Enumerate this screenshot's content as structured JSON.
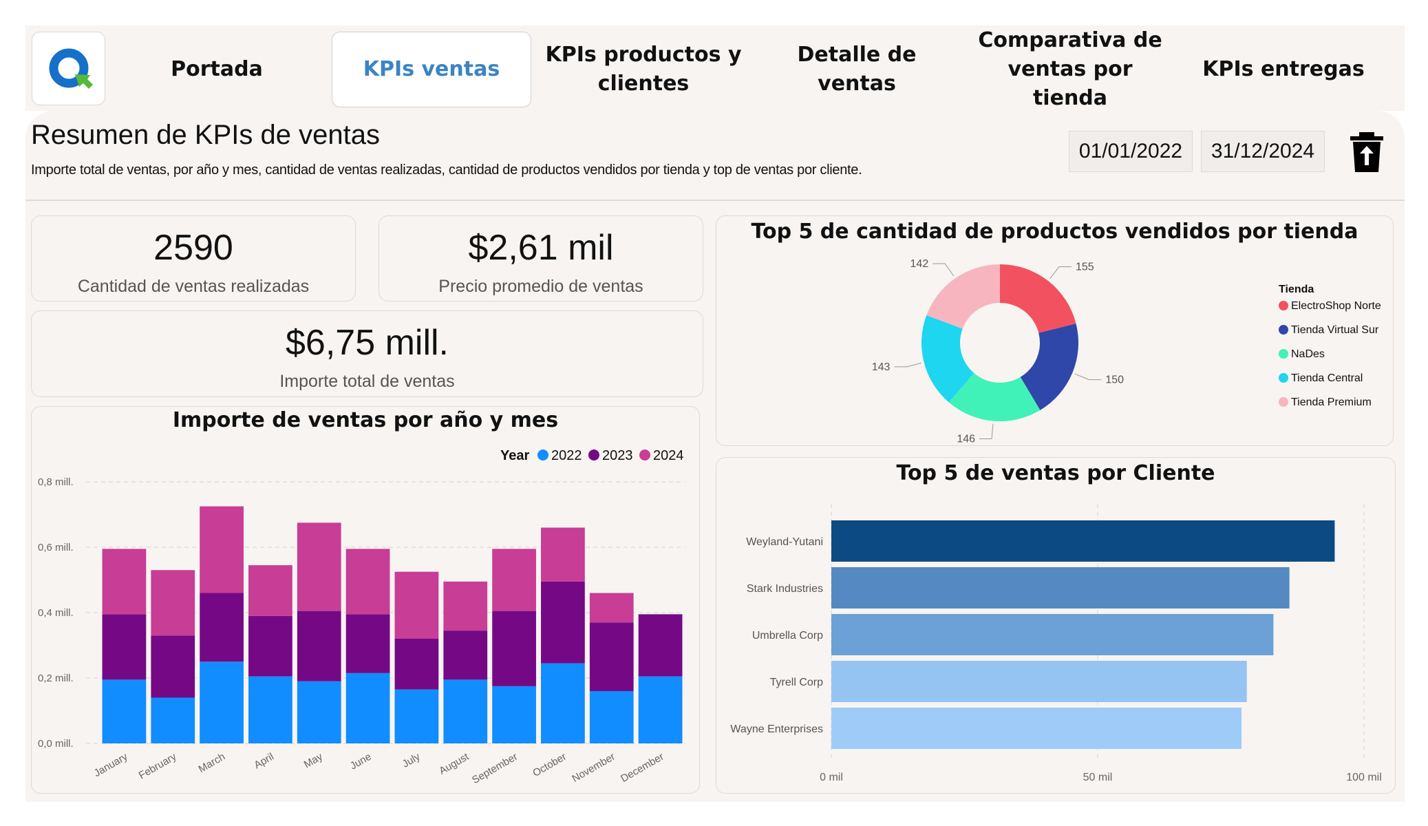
{
  "nav": {
    "tabs": [
      {
        "label": "Portada"
      },
      {
        "label": "KPIs ventas"
      },
      {
        "label": "KPIs productos y clientes"
      },
      {
        "label": "Detalle de ventas"
      },
      {
        "label": "Comparativa de ventas por tienda"
      },
      {
        "label": "KPIs entregas"
      }
    ],
    "active_tab": "KPIs ventas",
    "accent_color": "#3b84c4"
  },
  "header": {
    "title": "Resumen de KPIs de ventas",
    "subtitle": "Importe total de ventas, por año y mes, cantidad de ventas realizadas, cantidad de productos vendidos por tienda y top de ventas por cliente.",
    "date_from": "01/01/2022",
    "date_to": "31/12/2024",
    "clear_icon": "trash-upload-icon"
  },
  "kpis": {
    "sales_count": {
      "value": "2590",
      "label": "Cantidad de ventas realizadas"
    },
    "avg_price": {
      "value": "$2,61 mil",
      "label": "Precio promedio de ventas"
    },
    "total_amount": {
      "value": "$6,75 mill.",
      "label": "Importe total de ventas"
    }
  },
  "chart_data": [
    {
      "type": "bar",
      "stacked": true,
      "title": "Importe de ventas por año y mes",
      "legend_title": "Year",
      "legend_position": "top-right",
      "categories": [
        "January",
        "February",
        "March",
        "April",
        "May",
        "June",
        "July",
        "August",
        "September",
        "October",
        "November",
        "December"
      ],
      "series": [
        {
          "name": "2022",
          "color": "#118dff",
          "values": [
            0.195,
            0.14,
            0.25,
            0.205,
            0.19,
            0.215,
            0.165,
            0.195,
            0.175,
            0.245,
            0.16,
            0.205
          ]
        },
        {
          "name": "2023",
          "color": "#750985",
          "values": [
            0.2,
            0.19,
            0.21,
            0.185,
            0.215,
            0.18,
            0.155,
            0.15,
            0.23,
            0.25,
            0.21,
            0.19
          ]
        },
        {
          "name": "2024",
          "color": "#c83d95",
          "values": [
            0.2,
            0.2,
            0.265,
            0.155,
            0.27,
            0.2,
            0.205,
            0.15,
            0.19,
            0.165,
            0.09,
            0
          ]
        }
      ],
      "y_ticks": [
        "0,0 mill.",
        "0,2 mill.",
        "0,4 mill.",
        "0,6 mill.",
        "0,8 mill."
      ],
      "ylim": [
        0,
        0.8
      ],
      "grid": true
    },
    {
      "type": "pie",
      "donut": true,
      "title": "Top 5 de cantidad de productos vendidos por tienda",
      "legend_title": "Tienda",
      "legend_position": "right",
      "categories": [
        "ElectroShop Norte",
        "Tienda Virtual Sur",
        "NaDes",
        "Tienda Central",
        "Tienda Premium"
      ],
      "values": [
        155,
        150,
        146,
        143,
        142
      ],
      "colors": [
        "#f2525f",
        "#2f47a8",
        "#40f2b8",
        "#1ed6ef",
        "#f7b5bf"
      ]
    },
    {
      "type": "bar",
      "orientation": "horizontal",
      "title": "Top 5 de ventas por Cliente",
      "categories": [
        "Weyland-Yutani",
        "Stark Industries",
        "Umbrella Corp",
        "Tyrell Corp",
        "Wayne Enterprises"
      ],
      "values": [
        94.5,
        86,
        83,
        78,
        77
      ],
      "colors": [
        "#0c4a84",
        "#5589c2",
        "#6ba1d6",
        "#95c4f2",
        "#9fcbf8"
      ],
      "x_ticks": [
        "0 mil",
        "50 mil",
        "100 mil"
      ],
      "xlim": [
        0,
        100
      ],
      "grid": true
    }
  ]
}
